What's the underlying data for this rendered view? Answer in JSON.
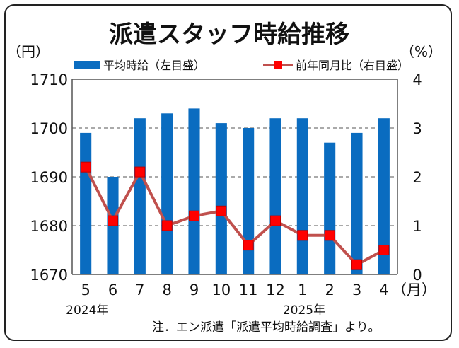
{
  "chart_data": {
    "type": "bar+line",
    "title": "派遣スタッフ時給推移",
    "left_unit": "（円）",
    "right_unit": "（%）",
    "categories": [
      "5",
      "6",
      "7",
      "8",
      "9",
      "10",
      "11",
      "12",
      "1",
      "2",
      "3",
      "4"
    ],
    "x_unit": "（月）",
    "year_labels": [
      {
        "label": "2024年",
        "category_index": 0
      },
      {
        "label": "2025年",
        "category_index": 8
      }
    ],
    "y_left": {
      "min": 1670,
      "max": 1710,
      "ticks": [
        1710,
        1700,
        1690,
        1680,
        1670
      ]
    },
    "y_right": {
      "min": 0,
      "max": 4,
      "ticks": [
        4,
        3,
        2,
        1,
        0
      ]
    },
    "gridlines": [
      1700,
      1690,
      1680
    ],
    "series": [
      {
        "name": "平均時給（左目盛）",
        "kind": "bar",
        "axis": "left",
        "color": "#0a6cc0",
        "values": [
          1699,
          1690,
          1702,
          1703,
          1704,
          1701,
          1700,
          1702,
          1702,
          1697,
          1699,
          1702
        ]
      },
      {
        "name": "前年同月比（右目盛）",
        "kind": "line",
        "axis": "right",
        "color": "#c0504d",
        "marker_color": "#ff0000",
        "values": [
          2.2,
          1.1,
          2.1,
          1.0,
          1.2,
          1.3,
          0.6,
          1.1,
          0.8,
          0.8,
          0.2,
          0.5
        ]
      }
    ],
    "note": "注．エン派遣「派遣平均時給調査」より。"
  }
}
